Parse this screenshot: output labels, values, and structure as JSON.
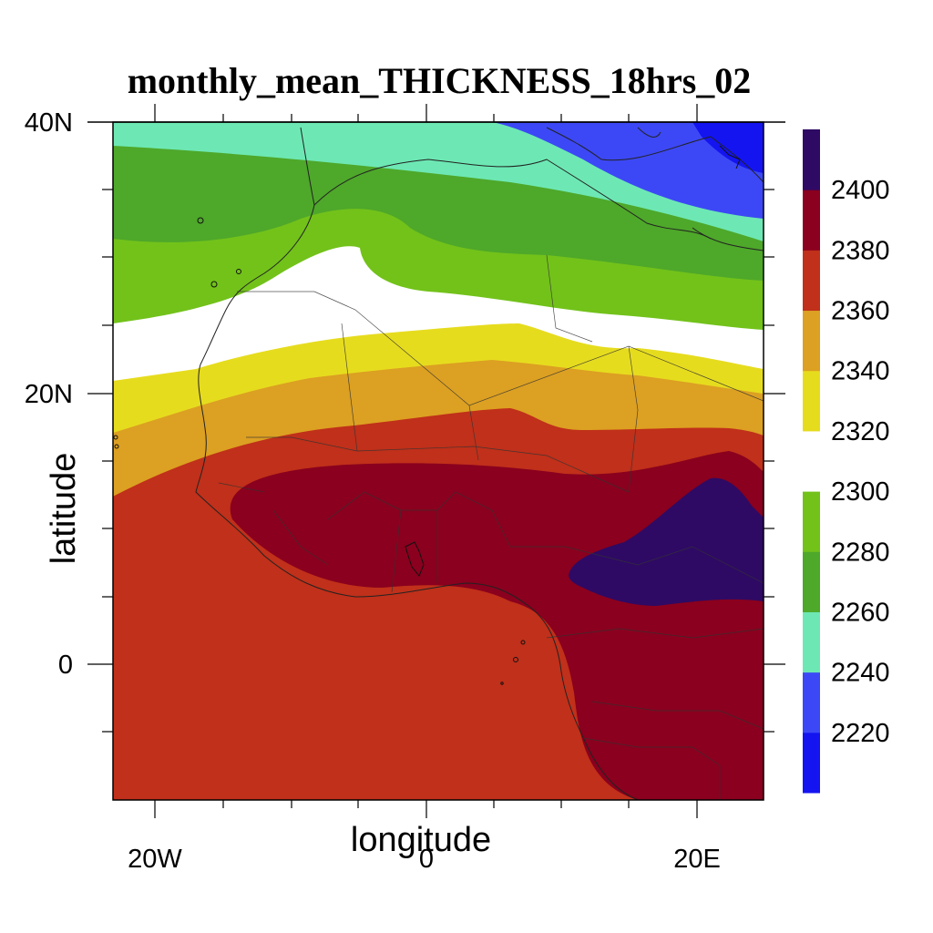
{
  "title": "monthly_mean_THICKNESS_18hrs_02",
  "xlabel": "longitude",
  "ylabel": "latitude",
  "x_ticks": [
    "20W",
    "0",
    "20E"
  ],
  "y_ticks": [
    "40N",
    "20N",
    "0"
  ],
  "colorbar": {
    "labels": [
      "2220",
      "2240",
      "2260",
      "2280",
      "2300",
      "2320",
      "2340",
      "2360",
      "2380",
      "2400"
    ],
    "colors": [
      "#1414f0",
      "#3c48f5",
      "#6de8b4",
      "#4ea82a",
      "#72c21a",
      "#ffffff",
      "#e6dc1e",
      "#dca022",
      "#c0301a",
      "#8a001e",
      "#2e0a64"
    ]
  },
  "chart_data": {
    "type": "heatmap",
    "title": "monthly_mean_THICKNESS_18hrs_02",
    "xlabel": "longitude",
    "ylabel": "latitude",
    "x_range": [
      -23,
      25
    ],
    "y_range": [
      -10,
      40
    ],
    "contour_levels": [
      2220,
      2240,
      2260,
      2280,
      2300,
      2320,
      2340,
      2360,
      2380,
      2400
    ]
  }
}
